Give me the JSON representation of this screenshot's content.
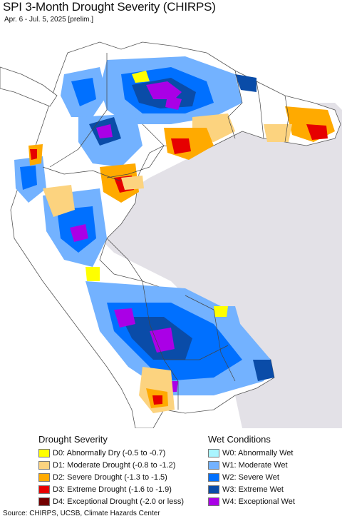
{
  "header": {
    "title": "SPI 3-Month Drought Severity (CHIRPS)",
    "subtitle": "Apr. 6 - Jul. 5, 2025 [prelim.]"
  },
  "legend": {
    "drought": {
      "heading": "Drought Severity",
      "items": [
        {
          "label": "D0: Abnormally Dry (-0.5 to -0.7)",
          "color": "#ffff00"
        },
        {
          "label": "D1: Moderate Drought (-0.8 to -1.2)",
          "color": "#fcd37f"
        },
        {
          "label": "D2: Severe Drought (-1.3 to -1.5)",
          "color": "#ffaa00"
        },
        {
          "label": "D3: Extreme Drought (-1.6 to -1.9)",
          "color": "#e60000"
        },
        {
          "label": "D4: Exceptional Drought (-2.0 or less)",
          "color": "#730000"
        }
      ]
    },
    "wet": {
      "heading": "Wet Conditions",
      "items": [
        {
          "label": "W0: Abnormally Wet",
          "color": "#aaf5ff"
        },
        {
          "label": "W1: Moderate Wet",
          "color": "#73b2ff"
        },
        {
          "label": "W2: Severe Wet",
          "color": "#0070ff"
        },
        {
          "label": "W3: Extreme Wet",
          "color": "#0a4ca8"
        },
        {
          "label": "W4: Exceptional Wet",
          "color": "#aa00e6"
        }
      ]
    }
  },
  "source": "Source: CHIRPS, UCSB, Climate Hazards Center",
  "colors": {
    "ocean": "#ffffff",
    "land": "#ffffff",
    "outside_region": "#e3e1e7",
    "border": "#555555"
  }
}
